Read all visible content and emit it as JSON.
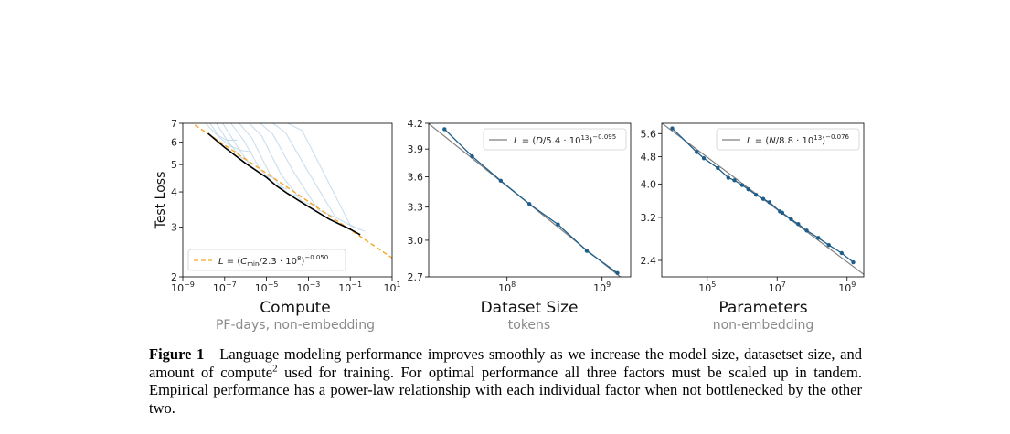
{
  "figure": {
    "colors": {
      "curve": "#b9d3e8",
      "frontier": "#000000",
      "fit_dash": "#f5a623",
      "series": "#1f5e8a",
      "fit_gray": "#7f7f7f"
    },
    "panels": [
      {
        "title": "Compute",
        "subtitle": "PF-days, non-embedding",
        "ylabel": "Test Loss",
        "chart_data": {
          "type": "line",
          "xscale": "log",
          "yscale": "log",
          "xlim": [
            1e-09,
            10
          ],
          "ylim": [
            2,
            7
          ],
          "xticks": [
            1e-09,
            1e-07,
            1e-05,
            0.001,
            0.1,
            10
          ],
          "xtick_labels": [
            "10−9",
            "10−7",
            "10−5",
            "10−3",
            "10−1",
            "101"
          ],
          "yticks": [
            2,
            3,
            4,
            5,
            6,
            7
          ],
          "ytick_labels": [
            "2",
            "3",
            "4",
            "5",
            "6",
            "7"
          ],
          "legend": {
            "label": "L = (Cmin/2.3·10^8)^−0.050",
            "location": "lower-left"
          },
          "fit": {
            "name": "L = (Cmin/2.3·10^8)^−0.050",
            "style": "dashed",
            "color": "orange",
            "scale": 230000000.0,
            "exponent": -0.05
          },
          "frontier": {
            "x": [
              1.6e-08,
              1e-07,
              1e-06,
              1e-05,
              3e-05,
              0.0001,
              0.001,
              0.01,
              0.1,
              0.3
            ],
            "y": [
              6.45,
              5.75,
              5.05,
              4.5,
              4.2,
              3.95,
              3.55,
              3.2,
              2.95,
              2.82
            ]
          },
          "training_curves": [
            {
              "x": [
                1.2e-08,
                4e-08,
                1.2e-07,
                4e-07
              ],
              "y": [
                7,
                6.4,
                6.1,
                6.1
              ]
            },
            {
              "x": [
                2e-08,
                6e-08,
                2e-07,
                7e-07,
                2e-06
              ],
              "y": [
                7,
                6.2,
                5.8,
                5.6,
                5.55
              ]
            },
            {
              "x": [
                4e-08,
                1.5e-07,
                6e-07,
                2e-06,
                6e-06
              ],
              "y": [
                7,
                6.0,
                5.3,
                5.05,
                5.0
              ]
            },
            {
              "x": [
                8e-08,
                3e-07,
                1.5e-06,
                6e-06,
                2e-05
              ],
              "y": [
                7,
                6.0,
                5.0,
                4.6,
                4.5
              ]
            },
            {
              "x": [
                2e-07,
                8e-07,
                5e-06,
                3e-05,
                0.0001
              ],
              "y": [
                7,
                6.1,
                4.8,
                4.2,
                4.1
              ]
            },
            {
              "x": [
                5e-07,
                2e-06,
                1.5e-05,
                0.0001,
                0.0005
              ],
              "y": [
                7,
                6.2,
                4.6,
                3.95,
                3.85
              ]
            },
            {
              "x": [
                1.5e-06,
                6e-06,
                5e-05,
                0.0005,
                0.003
              ],
              "y": [
                7,
                6.3,
                4.6,
                3.7,
                3.55
              ]
            },
            {
              "x": [
                5e-06,
                2e-05,
                0.0002,
                0.003,
                0.02
              ],
              "y": [
                7,
                6.4,
                4.7,
                3.45,
                3.25
              ]
            },
            {
              "x": [
                2e-05,
                8e-05,
                0.001,
                0.02,
                0.15
              ],
              "y": [
                7,
                6.5,
                4.7,
                3.25,
                3.0
              ]
            },
            {
              "x": [
                0.0001,
                0.0005,
                0.006,
                0.1,
                0.5
              ],
              "y": [
                7,
                6.6,
                4.6,
                3.05,
                2.9
              ]
            }
          ]
        }
      },
      {
        "title": "Dataset Size",
        "subtitle": "tokens",
        "chart_data": {
          "type": "line",
          "xscale": "log",
          "yscale": "log",
          "xlim": [
            15000000.0,
            2000000000.0
          ],
          "ylim": [
            2.7,
            4.2
          ],
          "xticks": [
            100000000.0,
            1000000000.0
          ],
          "xtick_labels": [
            "108",
            "109"
          ],
          "yticks": [
            2.7,
            3.0,
            3.3,
            3.6,
            3.9,
            4.2
          ],
          "ytick_labels": [
            "2.7",
            "3.0",
            "3.3",
            "3.6",
            "3.9",
            "4.2"
          ],
          "legend": {
            "label": "L = (D/5.4·10^13)^−0.095",
            "location": "upper-right"
          },
          "fit": {
            "name": "L = (D/5.4·10^13)^−0.095",
            "scale": 54000000000000.0,
            "exponent": -0.095
          },
          "series": [
            {
              "x": [
                22000000.0,
                43000000.0,
                86000000.0,
                172000000.0,
                344000000.0,
                690000000.0,
                1450000000.0
              ],
              "y": [
                4.13,
                3.82,
                3.56,
                3.33,
                3.14,
                2.91,
                2.73
              ]
            }
          ]
        }
      },
      {
        "title": "Parameters",
        "subtitle": "non-embedding",
        "chart_data": {
          "type": "line",
          "xscale": "log",
          "yscale": "log",
          "xlim": [
            5000.0,
            3000000000.0
          ],
          "ylim": [
            2.15,
            6.0
          ],
          "xticks": [
            100000.0,
            10000000.0,
            1000000000.0
          ],
          "xtick_labels": [
            "105",
            "107",
            "109"
          ],
          "yticks": [
            2.4,
            3.2,
            4.0,
            4.8,
            5.6
          ],
          "ytick_labels": [
            "2.4",
            "3.2",
            "4.0",
            "4.8",
            "5.6"
          ],
          "legend": {
            "label": "L = (N/8.8·10^13)^−0.076",
            "location": "upper-right"
          },
          "fit": {
            "name": "L = (N/8.8·10^13)^−0.076",
            "scale": 88000000000000.0,
            "exponent": -0.076
          },
          "series": [
            {
              "x": [
                10000.0,
                50000.0,
                80000.0,
                200000.0,
                400000.0,
                600000.0,
                1000000.0,
                1500000.0,
                2500000.0,
                4000000.0,
                6000000.0,
                12000000.0,
                14000000.0,
                25000000.0,
                40000000.0,
                70000000.0,
                150000000.0,
                300000000.0,
                700000000.0,
                1500000000.0
              ],
              "y": [
                5.8,
                4.95,
                4.75,
                4.45,
                4.17,
                4.1,
                3.97,
                3.86,
                3.72,
                3.62,
                3.54,
                3.33,
                3.3,
                3.16,
                3.06,
                2.93,
                2.79,
                2.66,
                2.52,
                2.37
              ]
            }
          ]
        }
      }
    ]
  },
  "caption": {
    "label": "Figure 1",
    "text_before_sup": "Language modeling performance improves smoothly as we increase the model size, datasetset size, and amount of compute",
    "sup": "2",
    "text_after_sup": " used for training. For optimal performance all three factors must be scaled up in tandem. Empirical performance has a power-law relationship with each individual factor when not bottlenecked by the other two."
  }
}
